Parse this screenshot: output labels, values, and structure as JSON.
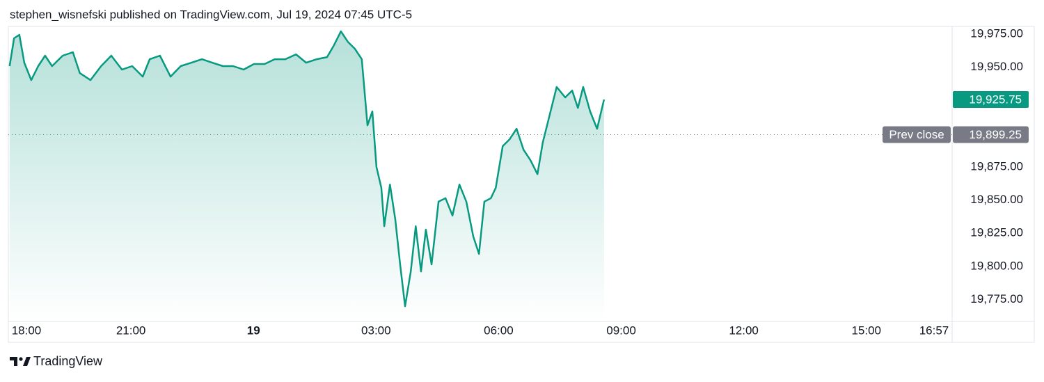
{
  "header": "stephen_wisnefski published on TradingView.com, Jul 19, 2024 07:45 UTC-5",
  "footer": "TradingView",
  "chart_data": {
    "type": "area",
    "color": "#089981",
    "grid": false,
    "x": [
      0.03,
      0.14,
      0.27,
      0.39,
      0.56,
      0.73,
      0.9,
      1.07,
      1.33,
      1.58,
      1.75,
      2.01,
      2.27,
      2.52,
      2.78,
      3.03,
      3.29,
      3.46,
      3.71,
      3.97,
      4.22,
      4.48,
      4.74,
      4.99,
      5.25,
      5.5,
      5.76,
      6.01,
      6.27,
      6.52,
      6.78,
      7.04,
      7.29,
      7.55,
      7.8,
      7.97,
      8.14,
      8.31,
      8.48,
      8.65,
      8.79,
      8.91,
      9.01,
      9.13,
      9.2,
      9.34,
      9.47,
      9.59,
      9.71,
      9.85,
      9.97,
      10.1,
      10.22,
      10.36,
      10.53,
      10.7,
      10.87,
      11.04,
      11.21,
      11.38,
      11.52,
      11.65,
      11.81,
      11.93,
      12.1,
      12.27,
      12.44,
      12.61,
      12.78,
      12.95,
      13.08,
      13.25,
      13.42,
      13.63,
      13.8,
      13.94,
      14.07,
      14.24,
      14.41,
      14.51,
      14.58
    ],
    "values": [
      19950.9,
      19971.9,
      19974.5,
      19953.5,
      19940.4,
      19950.9,
      19958.8,
      19950.9,
      19958.8,
      19961.4,
      19945.6,
      19940.4,
      19950.9,
      19958.8,
      19948.3,
      19950.9,
      19943,
      19956.1,
      19958.8,
      19943,
      19950.9,
      19953.5,
      19956.1,
      19953.5,
      19950.9,
      19950.9,
      19948.3,
      19952.5,
      19952.5,
      19956.1,
      19956.1,
      19959.8,
      19953.5,
      19956.1,
      19957.7,
      19966.6,
      19977.1,
      19969.2,
      19964,
      19956.1,
      19906.3,
      19916.8,
      19874.9,
      19859.2,
      19830.3,
      19861.7,
      19835.5,
      19801.5,
      19770,
      19796.2,
      19830.3,
      19796.2,
      19827.7,
      19801.5,
      19848.8,
      19851.4,
      19838.3,
      19861.7,
      19848.8,
      19822.5,
      19809.4,
      19848.8,
      19851.4,
      19859.2,
      19890.6,
      19895.8,
      19903.7,
      19887.9,
      19880,
      19869.5,
      19893.2,
      19914.2,
      19935.2,
      19927.3,
      19932.5,
      19919.4,
      19935.2,
      19916.8,
      19903.7,
      19916.8,
      19925.75
    ],
    "xlim": [
      0,
      23.1
    ],
    "ylim": [
      19758.5,
      19980.8
    ],
    "xticks": [
      {
        "value": 0,
        "label": "18:00"
      },
      {
        "value": 3,
        "label": "21:00"
      },
      {
        "value": 6,
        "label": "19"
      },
      {
        "value": 9,
        "label": "03:00"
      },
      {
        "value": 12,
        "label": "06:00"
      },
      {
        "value": 15,
        "label": "09:00"
      },
      {
        "value": 18,
        "label": "12:00"
      },
      {
        "value": 21,
        "label": "15:00"
      },
      {
        "value": 22.95,
        "label": "16:57"
      }
    ],
    "yticks": [
      {
        "value": 19975,
        "label": "19,975.00"
      },
      {
        "value": 19950,
        "label": "19,950.00"
      },
      {
        "value": 19925,
        "label": "19,925.00"
      },
      {
        "value": 19875,
        "label": "19,875.00"
      },
      {
        "value": 19850,
        "label": "19,850.00"
      },
      {
        "value": 19825,
        "label": "19,825.00"
      },
      {
        "value": 19800,
        "label": "19,800.00"
      },
      {
        "value": 19775,
        "label": "19,775.00"
      }
    ],
    "last_price": {
      "value": 19925.75,
      "label": "19,925.75"
    },
    "prev_close": {
      "name": "Prev close",
      "value": 19899.25,
      "label": "19,899.25"
    }
  }
}
